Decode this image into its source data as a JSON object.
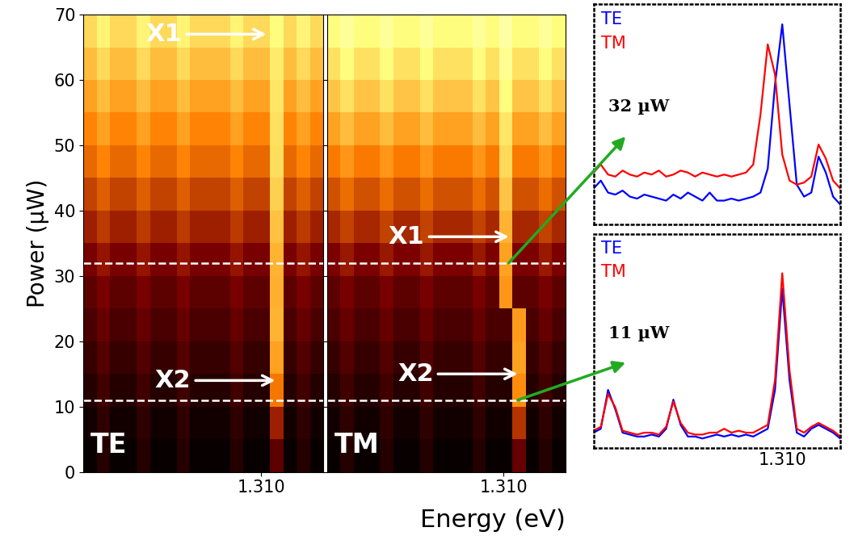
{
  "chart_data": [
    {
      "type": "heatmap",
      "title": "TE",
      "ylabel": "Power (µW)",
      "x_bins": [
        1.3,
        1.30075,
        1.3015,
        1.30225,
        1.303,
        1.30375,
        1.3045,
        1.30525,
        1.306,
        1.30675,
        1.3075,
        1.30825,
        1.309,
        1.30975,
        1.3105,
        1.31125,
        1.312,
        1.31275,
        1.3135
      ],
      "y_bins": [
        0,
        5,
        10,
        15,
        20,
        25,
        30,
        35,
        40,
        45,
        50,
        55,
        60,
        65,
        70
      ],
      "cells": [
        [
          0.02,
          0.08,
          0.02,
          0.02,
          0.08,
          0.02,
          0.02,
          0.08,
          0.02,
          0.02,
          0.02,
          0.08,
          0.02,
          0.02,
          0.2,
          0.02,
          0.08,
          0.02
        ],
        [
          0.04,
          0.1,
          0.04,
          0.04,
          0.1,
          0.04,
          0.04,
          0.1,
          0.04,
          0.04,
          0.04,
          0.1,
          0.04,
          0.04,
          0.34,
          0.04,
          0.1,
          0.04
        ],
        [
          0.08,
          0.14,
          0.08,
          0.08,
          0.14,
          0.08,
          0.08,
          0.14,
          0.08,
          0.08,
          0.08,
          0.14,
          0.08,
          0.08,
          0.53,
          0.08,
          0.14,
          0.08
        ],
        [
          0.12,
          0.18,
          0.12,
          0.12,
          0.18,
          0.12,
          0.12,
          0.18,
          0.12,
          0.12,
          0.12,
          0.18,
          0.12,
          0.12,
          0.62,
          0.12,
          0.18,
          0.12
        ],
        [
          0.16,
          0.22,
          0.16,
          0.16,
          0.22,
          0.16,
          0.16,
          0.22,
          0.16,
          0.16,
          0.16,
          0.22,
          0.16,
          0.16,
          0.66,
          0.16,
          0.22,
          0.16
        ],
        [
          0.2,
          0.26,
          0.2,
          0.2,
          0.26,
          0.2,
          0.2,
          0.26,
          0.2,
          0.2,
          0.2,
          0.26,
          0.2,
          0.2,
          0.65,
          0.2,
          0.26,
          0.2
        ],
        [
          0.26,
          0.32,
          0.26,
          0.26,
          0.32,
          0.26,
          0.26,
          0.32,
          0.26,
          0.26,
          0.26,
          0.32,
          0.26,
          0.26,
          0.66,
          0.26,
          0.32,
          0.26
        ],
        [
          0.34,
          0.4,
          0.34,
          0.34,
          0.4,
          0.34,
          0.34,
          0.4,
          0.34,
          0.34,
          0.34,
          0.4,
          0.34,
          0.34,
          0.69,
          0.34,
          0.4,
          0.34
        ],
        [
          0.42,
          0.48,
          0.42,
          0.42,
          0.48,
          0.42,
          0.42,
          0.48,
          0.42,
          0.42,
          0.42,
          0.48,
          0.42,
          0.42,
          0.72,
          0.42,
          0.48,
          0.42
        ],
        [
          0.5,
          0.56,
          0.5,
          0.5,
          0.56,
          0.5,
          0.5,
          0.56,
          0.5,
          0.5,
          0.5,
          0.56,
          0.5,
          0.5,
          0.75,
          0.5,
          0.56,
          0.5
        ],
        [
          0.56,
          0.62,
          0.56,
          0.56,
          0.62,
          0.56,
          0.56,
          0.62,
          0.56,
          0.56,
          0.56,
          0.62,
          0.56,
          0.56,
          0.76,
          0.56,
          0.62,
          0.56
        ],
        [
          0.62,
          0.68,
          0.62,
          0.62,
          0.68,
          0.62,
          0.62,
          0.68,
          0.62,
          0.62,
          0.62,
          0.68,
          0.62,
          0.62,
          0.77,
          0.62,
          0.68,
          0.62
        ],
        [
          0.68,
          0.74,
          0.68,
          0.68,
          0.74,
          0.68,
          0.68,
          0.74,
          0.68,
          0.68,
          0.68,
          0.74,
          0.68,
          0.68,
          0.78,
          0.68,
          0.74,
          0.68
        ],
        [
          0.74,
          0.8,
          0.74,
          0.74,
          0.8,
          0.74,
          0.74,
          0.8,
          0.74,
          0.74,
          0.74,
          0.8,
          0.74,
          0.74,
          0.82,
          0.74,
          0.8,
          0.74
        ]
      ],
      "color_range": [
        0,
        1.1
      ],
      "xlim": [
        1.3,
        1.3135
      ],
      "xticks": [
        {
          "value": 1.31,
          "label": "1.310"
        }
      ],
      "ylim": [
        0,
        70
      ],
      "yticks": [
        0,
        10,
        20,
        30,
        40,
        50,
        60,
        70
      ],
      "hlines": [
        32,
        11
      ],
      "annotations": [
        {
          "text": "X1",
          "x": 1.3103,
          "y": 67
        },
        {
          "text": "X2",
          "x": 1.3108,
          "y": 14
        }
      ]
    },
    {
      "type": "heatmap",
      "title": "TM",
      "tick_labels": "x",
      "x_bins": [
        1.3,
        1.30075,
        1.3015,
        1.30225,
        1.303,
        1.30375,
        1.3045,
        1.30525,
        1.306,
        1.30675,
        1.3075,
        1.30825,
        1.309,
        1.30975,
        1.3105,
        1.31125,
        1.312,
        1.31275,
        1.3135
      ],
      "y_bins": [
        0,
        5,
        10,
        15,
        20,
        25,
        30,
        35,
        40,
        45,
        50,
        55,
        60,
        65,
        70
      ],
      "cells": [
        [
          0.02,
          0.08,
          0.02,
          0.02,
          0.08,
          0.02,
          0.02,
          0.08,
          0.02,
          0.02,
          0.02,
          0.08,
          0.02,
          0.02,
          0.22,
          0.02,
          0.08,
          0.02
        ],
        [
          0.04,
          0.1,
          0.04,
          0.04,
          0.1,
          0.04,
          0.04,
          0.1,
          0.04,
          0.04,
          0.04,
          0.1,
          0.04,
          0.04,
          0.39,
          0.04,
          0.1,
          0.04
        ],
        [
          0.08,
          0.14,
          0.08,
          0.08,
          0.14,
          0.08,
          0.08,
          0.14,
          0.08,
          0.08,
          0.08,
          0.14,
          0.08,
          0.08,
          0.58,
          0.08,
          0.14,
          0.08
        ],
        [
          0.12,
          0.18,
          0.12,
          0.12,
          0.18,
          0.12,
          0.12,
          0.18,
          0.12,
          0.12,
          0.12,
          0.18,
          0.12,
          0.12,
          0.62,
          0.12,
          0.18,
          0.12
        ],
        [
          0.16,
          0.22,
          0.16,
          0.16,
          0.22,
          0.16,
          0.16,
          0.22,
          0.16,
          0.16,
          0.16,
          0.22,
          0.16,
          0.16,
          0.61,
          0.16,
          0.22,
          0.16
        ],
        [
          0.2,
          0.26,
          0.2,
          0.2,
          0.26,
          0.2,
          0.2,
          0.26,
          0.2,
          0.2,
          0.2,
          0.26,
          0.2,
          0.6,
          0.2,
          0.2,
          0.26,
          0.2
        ],
        [
          0.27,
          0.33,
          0.27,
          0.27,
          0.33,
          0.27,
          0.27,
          0.33,
          0.27,
          0.27,
          0.27,
          0.33,
          0.27,
          0.62,
          0.27,
          0.27,
          0.33,
          0.27
        ],
        [
          0.36,
          0.42,
          0.36,
          0.36,
          0.42,
          0.36,
          0.36,
          0.42,
          0.36,
          0.36,
          0.36,
          0.42,
          0.36,
          0.66,
          0.36,
          0.36,
          0.42,
          0.36
        ],
        [
          0.45,
          0.51,
          0.45,
          0.45,
          0.51,
          0.45,
          0.45,
          0.51,
          0.45,
          0.45,
          0.45,
          0.51,
          0.45,
          0.7,
          0.45,
          0.45,
          0.51,
          0.45
        ],
        [
          0.54,
          0.6,
          0.54,
          0.54,
          0.6,
          0.54,
          0.54,
          0.6,
          0.54,
          0.54,
          0.54,
          0.6,
          0.54,
          0.74,
          0.54,
          0.54,
          0.6,
          0.54
        ],
        [
          0.62,
          0.68,
          0.62,
          0.62,
          0.68,
          0.62,
          0.62,
          0.68,
          0.62,
          0.62,
          0.62,
          0.68,
          0.62,
          0.77,
          0.62,
          0.62,
          0.68,
          0.62
        ],
        [
          0.7,
          0.76,
          0.7,
          0.7,
          0.76,
          0.7,
          0.7,
          0.76,
          0.7,
          0.7,
          0.7,
          0.76,
          0.7,
          0.82,
          0.7,
          0.7,
          0.76,
          0.7
        ],
        [
          0.76,
          0.82,
          0.76,
          0.76,
          0.82,
          0.76,
          0.76,
          0.82,
          0.76,
          0.76,
          0.76,
          0.82,
          0.76,
          0.86,
          0.76,
          0.76,
          0.82,
          0.76
        ],
        [
          0.82,
          0.88,
          0.82,
          0.82,
          0.88,
          0.82,
          0.82,
          0.88,
          0.82,
          0.82,
          0.82,
          0.88,
          0.82,
          0.9,
          0.82,
          0.82,
          0.88,
          0.82
        ]
      ],
      "color_range": [
        0,
        1.1
      ],
      "xlim": [
        1.3,
        1.3135
      ],
      "xticks": [
        {
          "value": 1.31,
          "label": "1.310"
        }
      ],
      "ylim": [
        0,
        70
      ],
      "yticks": [
        0,
        10,
        20,
        30,
        40,
        50,
        60,
        70
      ],
      "hlines": [
        32,
        11
      ],
      "annotations": [
        {
          "text": "X1",
          "x": 1.3103,
          "y": 36
        },
        {
          "text": "X2",
          "x": 1.3108,
          "y": 15
        }
      ]
    },
    {
      "type": "line",
      "title": "32 µW",
      "tick_labels": false,
      "x": [
        1.3035,
        1.30375,
        1.304,
        1.30425,
        1.3045,
        1.30475,
        1.305,
        1.30525,
        1.3055,
        1.30575,
        1.306,
        1.30625,
        1.3065,
        1.30675,
        1.307,
        1.30725,
        1.3075,
        1.30775,
        1.308,
        1.30825,
        1.3085,
        1.30875,
        1.309,
        1.30925,
        1.3095,
        1.30975,
        1.31,
        1.31025,
        1.3105,
        1.31075,
        1.311,
        1.31125,
        1.3115,
        1.31175,
        1.312
      ],
      "series": [
        {
          "name": "TE",
          "color": "#0000ff",
          "values": [
            0.18,
            0.22,
            0.16,
            0.15,
            0.17,
            0.14,
            0.13,
            0.15,
            0.14,
            0.13,
            0.12,
            0.15,
            0.13,
            0.16,
            0.14,
            0.12,
            0.16,
            0.12,
            0.12,
            0.13,
            0.12,
            0.13,
            0.14,
            0.16,
            0.28,
            0.7,
            1.0,
            0.6,
            0.2,
            0.14,
            0.16,
            0.34,
            0.26,
            0.14,
            0.1
          ]
        },
        {
          "name": "TM",
          "color": "#ff0000",
          "values": [
            0.26,
            0.3,
            0.25,
            0.24,
            0.27,
            0.25,
            0.24,
            0.26,
            0.25,
            0.27,
            0.24,
            0.25,
            0.27,
            0.26,
            0.24,
            0.26,
            0.25,
            0.24,
            0.25,
            0.24,
            0.25,
            0.26,
            0.3,
            0.55,
            0.9,
            0.75,
            0.35,
            0.22,
            0.2,
            0.21,
            0.24,
            0.4,
            0.33,
            0.22,
            0.18
          ]
        }
      ],
      "xlim": [
        1.3035,
        1.312
      ],
      "ylim": [
        0,
        1.1
      ]
    },
    {
      "type": "line",
      "title": "11 µW",
      "tick_labels": "x",
      "x": [
        1.3035,
        1.30375,
        1.304,
        1.30425,
        1.3045,
        1.30475,
        1.305,
        1.30525,
        1.3055,
        1.30575,
        1.306,
        1.30625,
        1.3065,
        1.30675,
        1.307,
        1.30725,
        1.3075,
        1.30775,
        1.308,
        1.30825,
        1.3085,
        1.30875,
        1.309,
        1.30925,
        1.3095,
        1.30975,
        1.31,
        1.31025,
        1.3105,
        1.31075,
        1.311,
        1.31125,
        1.3115,
        1.31175,
        1.312
      ],
      "series": [
        {
          "name": "TE",
          "color": "#0000ff",
          "values": [
            0.08,
            0.1,
            0.3,
            0.2,
            0.08,
            0.07,
            0.06,
            0.06,
            0.07,
            0.06,
            0.1,
            0.25,
            0.12,
            0.06,
            0.06,
            0.05,
            0.06,
            0.07,
            0.06,
            0.07,
            0.06,
            0.07,
            0.06,
            0.08,
            0.1,
            0.3,
            0.82,
            0.35,
            0.08,
            0.06,
            0.1,
            0.12,
            0.1,
            0.08,
            0.05
          ]
        },
        {
          "name": "TM",
          "color": "#ff0000",
          "values": [
            0.09,
            0.11,
            0.28,
            0.21,
            0.09,
            0.08,
            0.07,
            0.08,
            0.08,
            0.07,
            0.11,
            0.24,
            0.13,
            0.08,
            0.07,
            0.07,
            0.08,
            0.08,
            0.1,
            0.08,
            0.09,
            0.08,
            0.08,
            0.1,
            0.12,
            0.35,
            0.9,
            0.4,
            0.1,
            0.08,
            0.11,
            0.13,
            0.11,
            0.09,
            0.06
          ]
        }
      ],
      "xlim": [
        1.3035,
        1.312
      ],
      "xticks": [
        {
          "value": 1.31,
          "label": "1.310"
        }
      ],
      "ylim": [
        0,
        1.1
      ]
    }
  ],
  "xlabel": "Energy (eV)"
}
